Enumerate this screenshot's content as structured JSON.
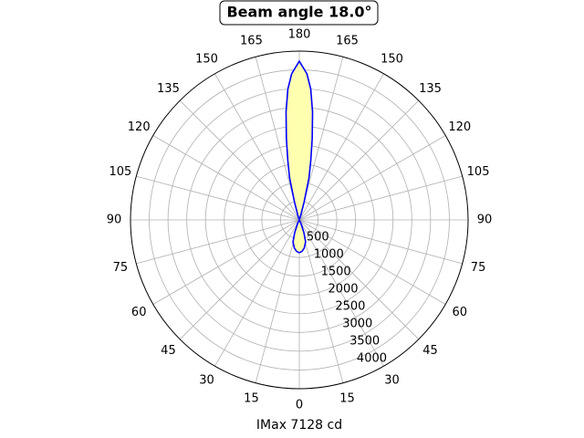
{
  "chart_data": {
    "type": "polar",
    "title": "Beam angle 18.0°",
    "xlabel": "IMax 7128 cd",
    "series": [
      {
        "color": "#0000ff",
        "fill": "#ffffb0",
        "theta": [
          0,
          5,
          10,
          16,
          20,
          25,
          30,
          160,
          163,
          165,
          167,
          169,
          171,
          173,
          175,
          177,
          180,
          183,
          185,
          187,
          189,
          191,
          193,
          195,
          197,
          200,
          330,
          335,
          340,
          344,
          350,
          355,
          360
        ],
        "values": [
          875,
          840,
          760,
          610,
          360,
          100,
          0,
          0,
          150,
          500,
          1150,
          1600,
          2200,
          2900,
          3500,
          3900,
          4230,
          3900,
          3500,
          2900,
          2200,
          1600,
          1150,
          500,
          150,
          0,
          0,
          100,
          360,
          610,
          760,
          840,
          875
        ]
      }
    ],
    "rlim": [
      0,
      4500
    ],
    "rticks": [
      500,
      1000,
      1500,
      2000,
      2500,
      3000,
      3500,
      4000
    ],
    "thetaticks": [
      0,
      15,
      30,
      45,
      60,
      75,
      90,
      105,
      120,
      135,
      150,
      165,
      180,
      {
        "value": 195,
        "label": "165"
      },
      {
        "value": 210,
        "label": "150"
      },
      {
        "value": 225,
        "label": "135"
      },
      {
        "value": 240,
        "label": "120"
      },
      {
        "value": 255,
        "label": "105"
      },
      {
        "value": 270,
        "label": "90"
      },
      {
        "value": 285,
        "label": "75"
      },
      {
        "value": 300,
        "label": "60"
      },
      {
        "value": 315,
        "label": "45"
      },
      {
        "value": 330,
        "label": "30"
      },
      {
        "value": 345,
        "label": "15"
      }
    ],
    "grid": true
  }
}
